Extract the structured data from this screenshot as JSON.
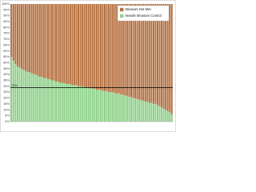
{
  "chart_data": {
    "type": "bar",
    "stacked": true,
    "categories": [
      null,
      null,
      null,
      null,
      null,
      null,
      null,
      null,
      null,
      null,
      null,
      null,
      null,
      null,
      null,
      null,
      null,
      null,
      null,
      null,
      null,
      null,
      null,
      null,
      null,
      null,
      null,
      null,
      null,
      null,
      null,
      null,
      null,
      null,
      null,
      null,
      null,
      null,
      null,
      null,
      null,
      null,
      null,
      null,
      null,
      null,
      null,
      null,
      null,
      null,
      null,
      null,
      null,
      null,
      null,
      null,
      null,
      null,
      null,
      null,
      null,
      null,
      null,
      null,
      null,
      null,
      null,
      null,
      null,
      null,
      null,
      null,
      null,
      null,
      null,
      null,
      null,
      null,
      null,
      null
    ],
    "series": [
      {
        "name": "Needle Measure Control",
        "color": "#8fd18a",
        "values": [
          55,
          52,
          49,
          47,
          46,
          45,
          44,
          43,
          42,
          42,
          41,
          40,
          40,
          39,
          38,
          38,
          37,
          37,
          36,
          36,
          35,
          35,
          34,
          34,
          33,
          33,
          33,
          32,
          32,
          32,
          31,
          31,
          31,
          30,
          30,
          30,
          29,
          29,
          29,
          28,
          28,
          28,
          27,
          27,
          27,
          26,
          26,
          26,
          25,
          25,
          25,
          24,
          24,
          24,
          23,
          23,
          22,
          22,
          21,
          21,
          20,
          20,
          19,
          19,
          18,
          18,
          17,
          17,
          16,
          16,
          15,
          15,
          14,
          13,
          12,
          11,
          10,
          9,
          8,
          6
        ]
      },
      {
        "name": "Measure Not Met",
        "color": "#b5703f",
        "values": [
          45,
          48,
          51,
          53,
          54,
          55,
          56,
          57,
          58,
          58,
          59,
          60,
          60,
          61,
          62,
          62,
          63,
          63,
          64,
          64,
          65,
          65,
          66,
          66,
          67,
          67,
          67,
          68,
          68,
          68,
          69,
          69,
          69,
          70,
          70,
          70,
          71,
          71,
          71,
          72,
          72,
          72,
          73,
          73,
          73,
          74,
          74,
          74,
          75,
          75,
          75,
          76,
          76,
          76,
          77,
          77,
          78,
          78,
          79,
          79,
          80,
          80,
          81,
          81,
          82,
          82,
          83,
          83,
          84,
          84,
          85,
          85,
          86,
          87,
          88,
          89,
          90,
          91,
          92,
          94
        ]
      }
    ],
    "ylim": [
      0,
      100
    ],
    "yticks": [
      {
        "value": 0,
        "label": "0%"
      },
      {
        "value": 5,
        "label": "5%"
      },
      {
        "value": 10,
        "label": "10%"
      },
      {
        "value": 15,
        "label": "15%"
      },
      {
        "value": 20,
        "label": "20%"
      },
      {
        "value": 25,
        "label": "25%"
      },
      {
        "value": 30,
        "label": "30%"
      },
      {
        "value": 35,
        "label": "35%"
      },
      {
        "value": 40,
        "label": "40%"
      },
      {
        "value": 45,
        "label": "45%"
      },
      {
        "value": 50,
        "label": "50%"
      },
      {
        "value": 55,
        "label": "55%"
      },
      {
        "value": 60,
        "label": "60%"
      },
      {
        "value": 65,
        "label": "65%"
      },
      {
        "value": 70,
        "label": "70%"
      },
      {
        "value": 75,
        "label": "75%"
      },
      {
        "value": 80,
        "label": "80%"
      },
      {
        "value": 85,
        "label": "85%"
      },
      {
        "value": 90,
        "label": "90%"
      },
      {
        "value": 95,
        "label": "95%"
      },
      {
        "value": 100,
        "label": "100%"
      }
    ],
    "reference_line": {
      "value": 29,
      "label": "29%"
    },
    "legend": "top-right"
  }
}
